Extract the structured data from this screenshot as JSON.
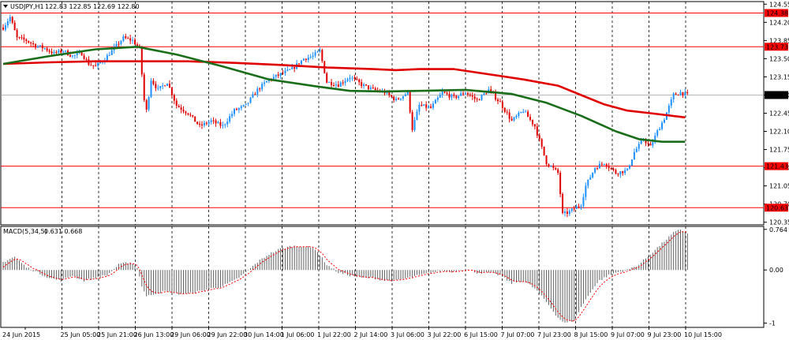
{
  "window": {
    "symbol_label": "USDJPY,H1",
    "ohlc_text": "122.83 122.85 122.69 122.80",
    "menu_icon": "triangle-down-icon"
  },
  "chart_data": [
    {
      "type": "line",
      "title": "USDJPY,H1",
      "y_axis": {
        "ticks": [
          124.55,
          124.2,
          123.85,
          123.5,
          123.15,
          122.8,
          122.45,
          122.1,
          121.75,
          121.4,
          121.05,
          120.7,
          120.35
        ],
        "range": [
          120.3,
          124.6
        ]
      },
      "x_axis": {
        "tick_labels": [
          "24 Jun 2015",
          "25 Jun 05:00",
          "25 Jun 21:00",
          "26 Jun 13:00",
          "29 Jun 06:00",
          "29 Jun 22:00",
          "30 Jun 14:00",
          "1 Jul 06:00",
          "1 Jul 22:00",
          "2 Jul 14:00",
          "3 Jul 06:00",
          "3 Jul 22:00",
          "6 Jul 15:00",
          "7 Jul 07:00",
          "7 Jul 23:00",
          "8 Jul 15:00",
          "9 Jul 07:00",
          "9 Jul 23:00",
          "10 Jul 15:00"
        ]
      },
      "horizontal_levels": [
        {
          "value": 124.38,
          "label": "124.38",
          "color": "#ff0000"
        },
        {
          "value": 123.73,
          "label": "123.73",
          "color": "#ff0000"
        },
        {
          "value": 121.43,
          "label": "121.43",
          "color": "#ff0000"
        },
        {
          "value": 120.63,
          "label": "120.63",
          "color": "#ff0000"
        }
      ],
      "current_price": {
        "value": 122.8,
        "label": "122.80"
      },
      "series": [
        {
          "kind": "moving-average-red",
          "color": "#e00000",
          "points": [
            [
              0,
              123.4
            ],
            [
              20,
              123.43
            ],
            [
              40,
              123.45
            ],
            [
              60,
              123.45
            ],
            [
              80,
              123.45
            ],
            [
              100,
              123.42
            ],
            [
              120,
              123.38
            ],
            [
              140,
              123.33
            ],
            [
              160,
              123.3
            ],
            [
              170,
              123.28
            ],
            [
              180,
              123.3
            ],
            [
              195,
              123.3
            ],
            [
              210,
              123.2
            ],
            [
              225,
              123.1
            ],
            [
              240,
              122.98
            ],
            [
              250,
              122.8
            ],
            [
              260,
              122.62
            ],
            [
              270,
              122.5
            ],
            [
              280,
              122.45
            ],
            [
              295,
              122.37
            ]
          ]
        },
        {
          "kind": "moving-average-green",
          "color": "#1a6e1a",
          "points": [
            [
              0,
              123.4
            ],
            [
              20,
              123.55
            ],
            [
              40,
              123.68
            ],
            [
              58,
              123.73
            ],
            [
              75,
              123.58
            ],
            [
              95,
              123.35
            ],
            [
              115,
              123.1
            ],
            [
              135,
              122.97
            ],
            [
              150,
              122.88
            ],
            [
              165,
              122.87
            ],
            [
              180,
              122.88
            ],
            [
              200,
              122.9
            ],
            [
              220,
              122.82
            ],
            [
              235,
              122.65
            ],
            [
              250,
              122.4
            ],
            [
              265,
              122.1
            ],
            [
              275,
              121.95
            ],
            [
              285,
              121.9
            ],
            [
              295,
              121.9
            ]
          ]
        }
      ],
      "candles": "generated from close_path",
      "close_path": [
        [
          0,
          124.1
        ],
        [
          3,
          124.3
        ],
        [
          6,
          123.9
        ],
        [
          10,
          123.85
        ],
        [
          14,
          123.75
        ],
        [
          18,
          123.7
        ],
        [
          22,
          123.6
        ],
        [
          26,
          123.65
        ],
        [
          30,
          123.55
        ],
        [
          34,
          123.6
        ],
        [
          37,
          123.4
        ],
        [
          40,
          123.35
        ],
        [
          44,
          123.5
        ],
        [
          48,
          123.7
        ],
        [
          52,
          123.9
        ],
        [
          56,
          123.85
        ],
        [
          59,
          123.7
        ],
        [
          61,
          122.7
        ],
        [
          62,
          122.5
        ],
        [
          64,
          123.1
        ],
        [
          67,
          122.9
        ],
        [
          71,
          123.05
        ],
        [
          75,
          122.6
        ],
        [
          80,
          122.45
        ],
        [
          85,
          122.2
        ],
        [
          90,
          122.3
        ],
        [
          95,
          122.2
        ],
        [
          100,
          122.5
        ],
        [
          105,
          122.6
        ],
        [
          110,
          122.9
        ],
        [
          115,
          123.1
        ],
        [
          120,
          123.2
        ],
        [
          125,
          123.3
        ],
        [
          130,
          123.5
        ],
        [
          134,
          123.55
        ],
        [
          137,
          123.65
        ],
        [
          140,
          123.05
        ],
        [
          145,
          123.0
        ],
        [
          150,
          123.15
        ],
        [
          155,
          123.0
        ],
        [
          160,
          122.9
        ],
        [
          165,
          122.85
        ],
        [
          170,
          122.7
        ],
        [
          175,
          122.85
        ],
        [
          177,
          122.15
        ],
        [
          180,
          122.6
        ],
        [
          185,
          122.55
        ],
        [
          190,
          122.85
        ],
        [
          195,
          122.75
        ],
        [
          200,
          122.85
        ],
        [
          205,
          122.7
        ],
        [
          210,
          122.9
        ],
        [
          215,
          122.65
        ],
        [
          220,
          122.3
        ],
        [
          225,
          122.5
        ],
        [
          230,
          122.2
        ],
        [
          235,
          121.5
        ],
        [
          240,
          121.3
        ],
        [
          242,
          120.5
        ],
        [
          245,
          120.55
        ],
        [
          250,
          120.7
        ],
        [
          252,
          121.05
        ],
        [
          256,
          121.4
        ],
        [
          260,
          121.5
        ],
        [
          265,
          121.3
        ],
        [
          270,
          121.35
        ],
        [
          273,
          121.7
        ],
        [
          277,
          121.95
        ],
        [
          280,
          121.8
        ],
        [
          283,
          122.1
        ],
        [
          286,
          122.35
        ],
        [
          290,
          122.8
        ],
        [
          293,
          122.85
        ],
        [
          296,
          122.8
        ]
      ],
      "last_index": 296
    },
    {
      "type": "bar",
      "title": "MACD(5,34,5)",
      "values_text": "0.631 0.668",
      "y_axis": {
        "ticks": [
          0.764,
          0.0,
          -1
        ],
        "tick_labels": [
          "0.764",
          "0.00",
          "-1"
        ],
        "range": [
          -1.08,
          0.82
        ]
      },
      "histogram_color": "#606060",
      "signal_color": "#ff0000",
      "hist_path": [
        [
          0,
          0.15
        ],
        [
          5,
          0.25
        ],
        [
          10,
          0.05
        ],
        [
          15,
          -0.05
        ],
        [
          20,
          -0.15
        ],
        [
          25,
          -0.2
        ],
        [
          30,
          -0.1
        ],
        [
          35,
          -0.2
        ],
        [
          40,
          -0.15
        ],
        [
          45,
          -0.1
        ],
        [
          50,
          0.1
        ],
        [
          55,
          0.15
        ],
        [
          58,
          0.05
        ],
        [
          60,
          -0.3
        ],
        [
          62,
          -0.5
        ],
        [
          65,
          -0.45
        ],
        [
          70,
          -0.4
        ],
        [
          75,
          -0.45
        ],
        [
          80,
          -0.45
        ],
        [
          85,
          -0.4
        ],
        [
          90,
          -0.35
        ],
        [
          95,
          -0.3
        ],
        [
          100,
          -0.2
        ],
        [
          105,
          -0.05
        ],
        [
          110,
          0.15
        ],
        [
          115,
          0.3
        ],
        [
          120,
          0.4
        ],
        [
          125,
          0.45
        ],
        [
          130,
          0.45
        ],
        [
          135,
          0.4
        ],
        [
          140,
          0.1
        ],
        [
          145,
          -0.05
        ],
        [
          150,
          -0.1
        ],
        [
          155,
          -0.15
        ],
        [
          160,
          -0.15
        ],
        [
          165,
          -0.2
        ],
        [
          170,
          -0.2
        ],
        [
          175,
          -0.15
        ],
        [
          180,
          -0.1
        ],
        [
          185,
          -0.05
        ],
        [
          190,
          -0.02
        ],
        [
          195,
          -0.03
        ],
        [
          200,
          0.02
        ],
        [
          205,
          -0.05
        ],
        [
          210,
          -0.05
        ],
        [
          215,
          -0.1
        ],
        [
          220,
          -0.25
        ],
        [
          225,
          -0.2
        ],
        [
          230,
          -0.35
        ],
        [
          235,
          -0.6
        ],
        [
          240,
          -0.9
        ],
        [
          243,
          -1.0
        ],
        [
          247,
          -0.95
        ],
        [
          250,
          -0.7
        ],
        [
          255,
          -0.35
        ],
        [
          258,
          -0.2
        ],
        [
          262,
          -0.1
        ],
        [
          265,
          -0.05
        ],
        [
          270,
          0.0
        ],
        [
          275,
          0.1
        ],
        [
          280,
          0.3
        ],
        [
          285,
          0.5
        ],
        [
          290,
          0.7
        ],
        [
          293,
          0.76
        ],
        [
          296,
          0.7
        ]
      ]
    }
  ]
}
